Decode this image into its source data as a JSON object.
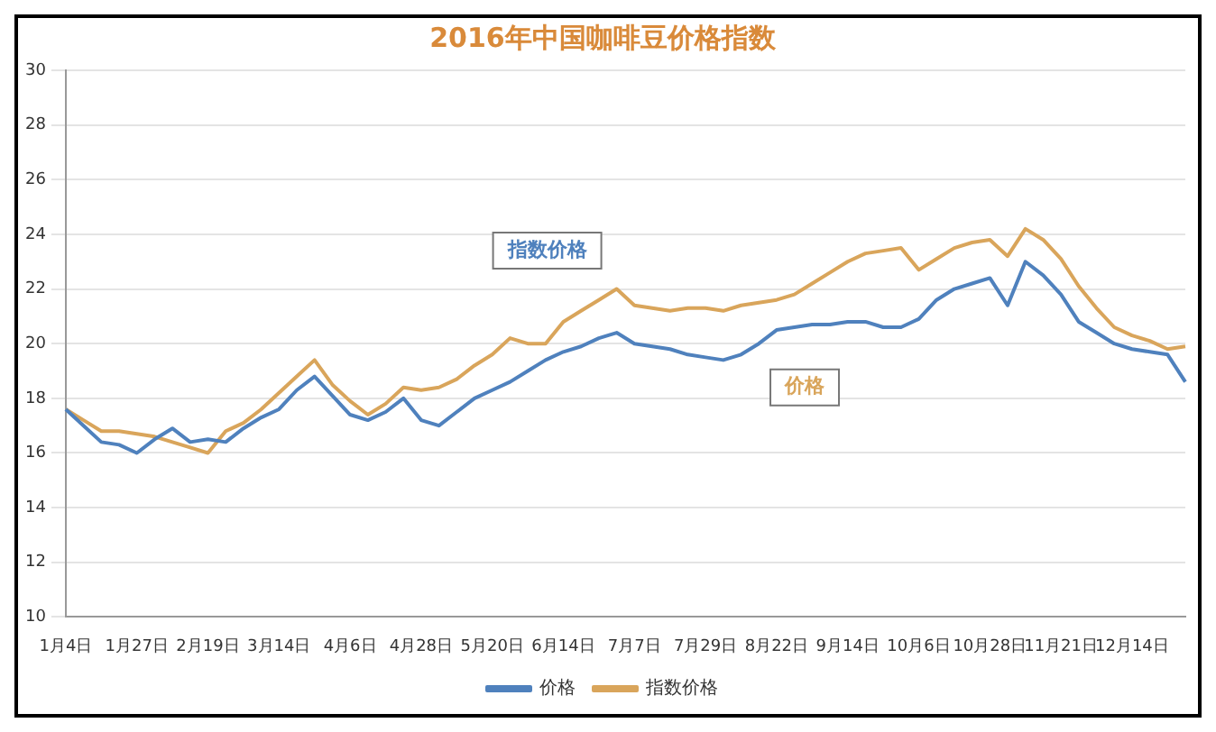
{
  "chart_data": {
    "type": "line",
    "title": "2016年中国咖啡豆价格指数",
    "categories": [
      "1月4日",
      null,
      null,
      null,
      "1月27日",
      null,
      null,
      null,
      "2月19日",
      null,
      null,
      null,
      "3月14日",
      null,
      null,
      null,
      "4月6日",
      null,
      null,
      null,
      "4月28日",
      null,
      null,
      null,
      "5月20日",
      null,
      null,
      null,
      "6月14日",
      null,
      null,
      null,
      "7月7日",
      null,
      null,
      null,
      "7月29日",
      null,
      null,
      null,
      "8月22日",
      null,
      null,
      null,
      "9月14日",
      null,
      null,
      null,
      "10月6日",
      null,
      null,
      null,
      "10月28日",
      null,
      null,
      null,
      "11月21日",
      null,
      null,
      null,
      "12月14日",
      null,
      null,
      null
    ],
    "series": [
      {
        "name": "价格",
        "color": "#4f81bd",
        "values": [
          17.6,
          17.0,
          16.4,
          16.3,
          16.0,
          16.5,
          16.9,
          16.4,
          16.5,
          16.4,
          16.9,
          17.3,
          17.6,
          18.3,
          18.8,
          18.1,
          17.4,
          17.2,
          17.5,
          18.0,
          17.2,
          17.0,
          17.5,
          18.0,
          18.3,
          18.6,
          19.0,
          19.4,
          19.7,
          19.9,
          20.2,
          20.4,
          20.0,
          19.9,
          19.8,
          19.6,
          19.5,
          19.4,
          19.6,
          20.0,
          20.5,
          20.6,
          20.7,
          20.7,
          20.8,
          20.8,
          20.6,
          20.6,
          20.9,
          21.6,
          22.0,
          22.2,
          22.4,
          21.4,
          23.0,
          22.5,
          21.8,
          20.8,
          20.4,
          20.0,
          19.8,
          19.7,
          19.6,
          18.6
        ]
      },
      {
        "name": "指数价格",
        "color": "#d9a55b",
        "values": [
          17.6,
          17.2,
          16.8,
          16.8,
          16.7,
          16.6,
          16.4,
          16.2,
          16.0,
          16.8,
          17.1,
          17.6,
          18.2,
          18.8,
          19.4,
          18.5,
          17.9,
          17.4,
          17.8,
          18.4,
          18.3,
          18.4,
          18.7,
          19.2,
          19.6,
          20.2,
          20.0,
          20.0,
          20.8,
          21.2,
          21.6,
          22.0,
          21.4,
          21.3,
          21.2,
          21.3,
          21.3,
          21.2,
          21.4,
          21.5,
          21.6,
          21.8,
          22.2,
          22.6,
          23.0,
          23.3,
          23.4,
          23.5,
          22.7,
          23.1,
          23.5,
          23.7,
          23.8,
          23.2,
          24.2,
          23.8,
          23.1,
          22.1,
          21.3,
          20.6,
          20.3,
          20.1,
          19.8,
          19.9
        ]
      }
    ],
    "annotations": [
      "指数价格",
      "价格"
    ],
    "ylim": [
      10,
      30
    ],
    "yticks": [
      10,
      12,
      14,
      16,
      18,
      20,
      22,
      24,
      26,
      28,
      30
    ],
    "grid": "y",
    "legend": "bottom",
    "marker": "none",
    "line_style": "solid"
  }
}
